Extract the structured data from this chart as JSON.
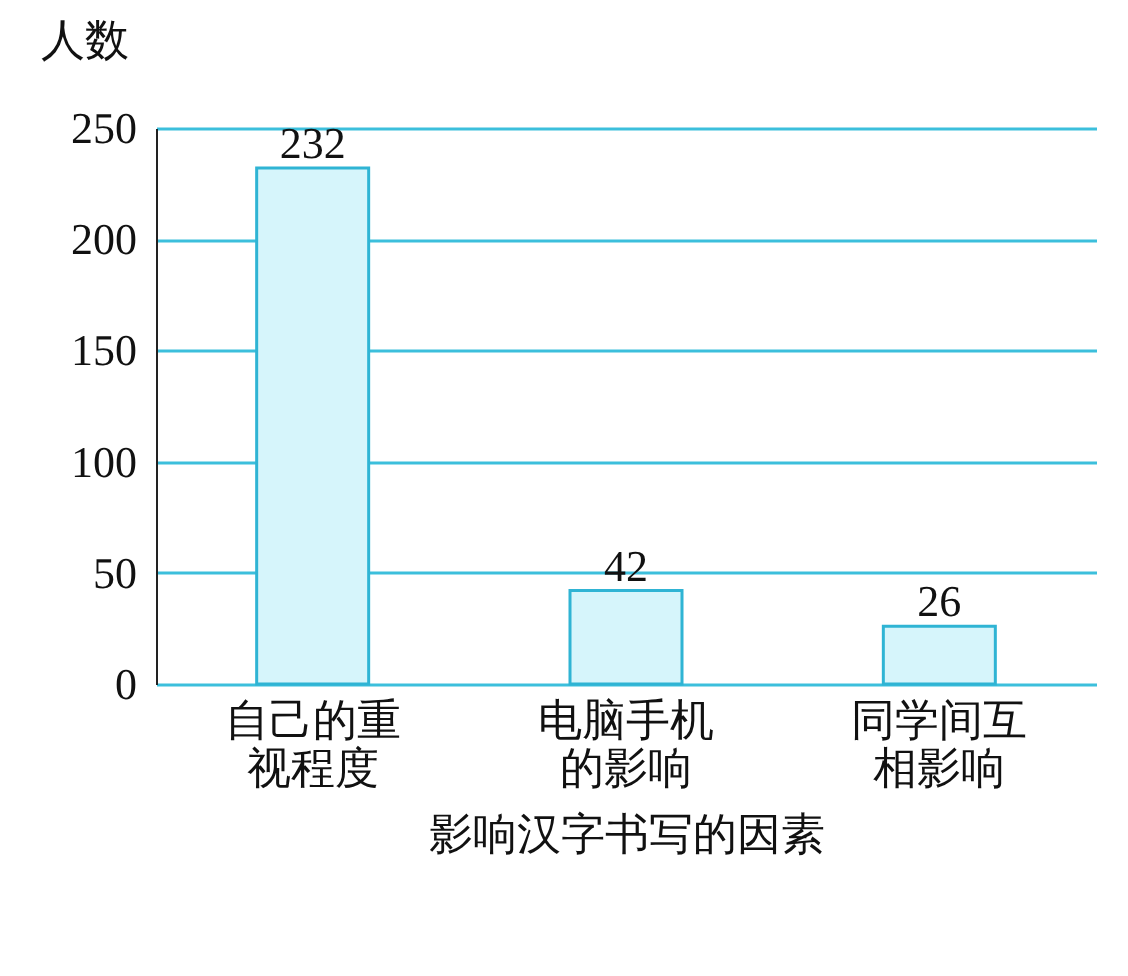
{
  "chart_data": {
    "type": "bar",
    "ylabel": "人数",
    "xlabel": "影响汉字书写的因素",
    "categories": [
      "自己的重视程度",
      "电脑手机的影响",
      "同学间互相影响"
    ],
    "values": [
      232,
      42,
      26
    ],
    "color": "#d6f5fb",
    "ylim": [
      0,
      250
    ],
    "yticks": [
      0,
      50,
      100,
      150,
      200,
      250
    ],
    "grid": "y",
    "data_labels": true
  }
}
